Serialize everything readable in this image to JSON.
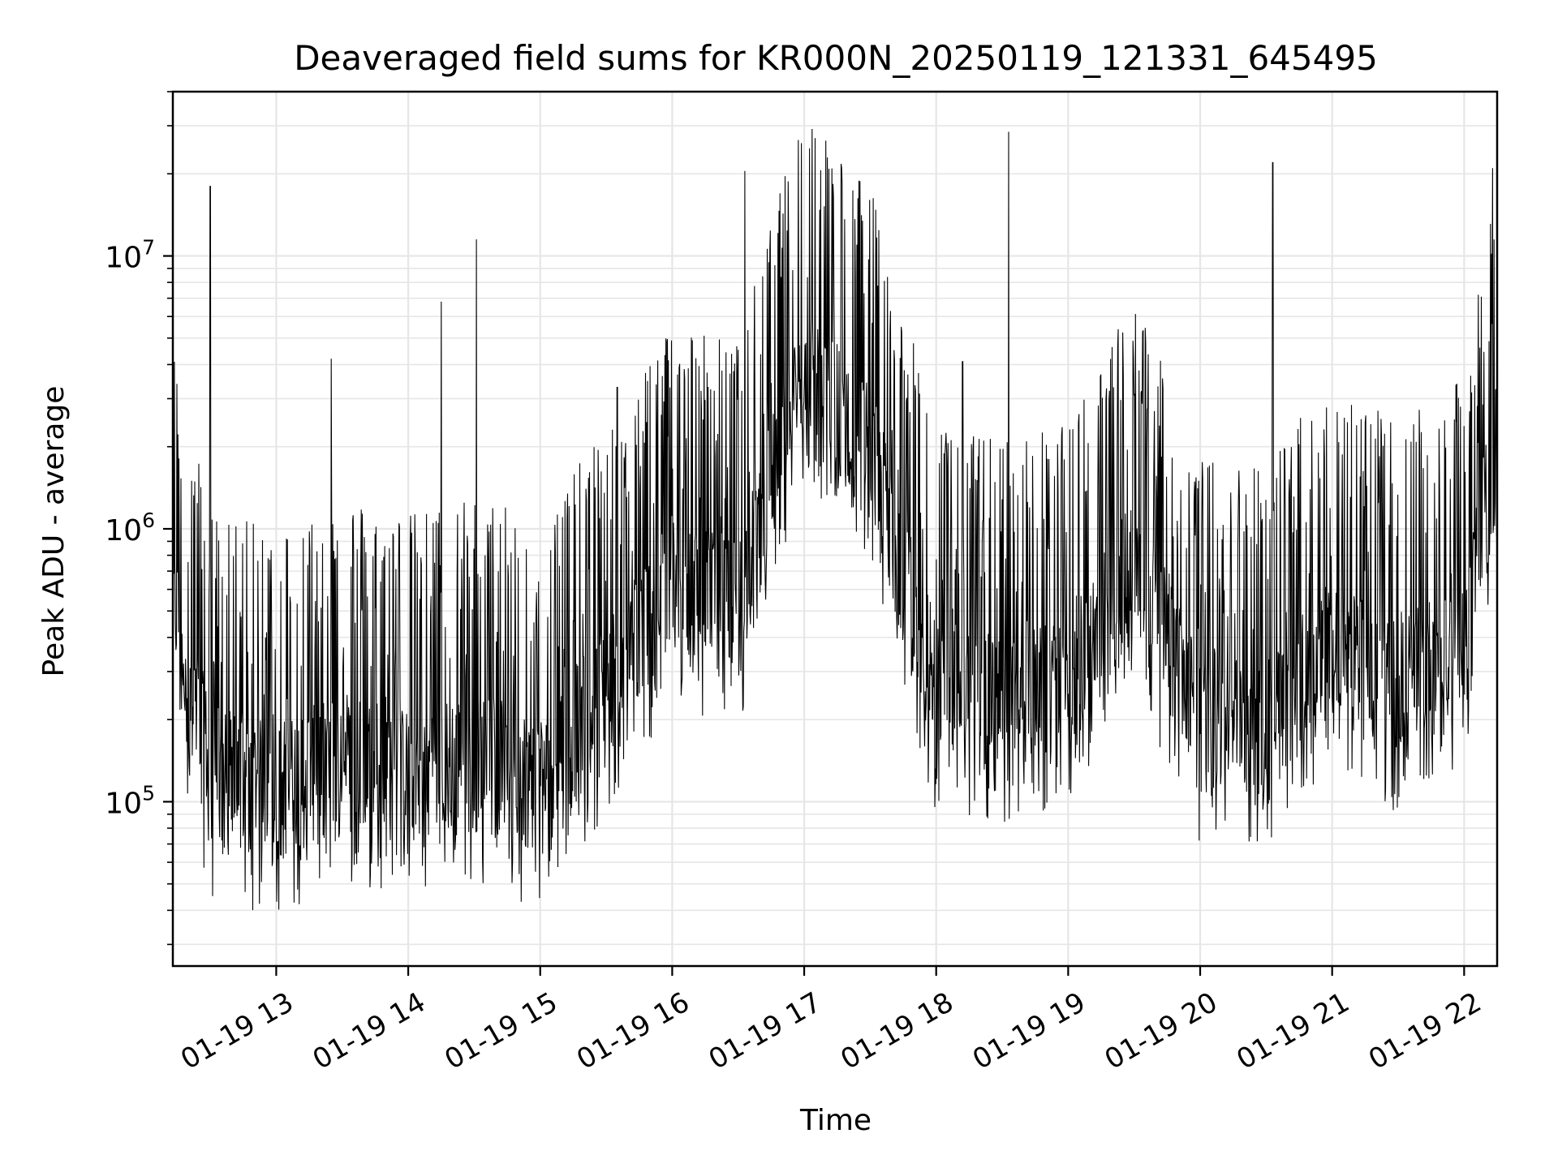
{
  "chart_data": {
    "type": "line",
    "title": "Deaveraged field sums for KR000N_20250119_121331_645495",
    "xlabel": "Time",
    "ylabel": "Peak ADU - average",
    "y_scale": "log",
    "ylim": [
      25000,
      40000000
    ],
    "xlim": [
      "2025-01-19 12:13",
      "2025-01-19 22:15"
    ],
    "grid": true,
    "line_color": "#000000",
    "grid_color": "#e6e6e6",
    "x_ticks": [
      {
        "value": "2025-01-19 13:00",
        "label": "01-19 13"
      },
      {
        "value": "2025-01-19 14:00",
        "label": "01-19 14"
      },
      {
        "value": "2025-01-19 15:00",
        "label": "01-19 15"
      },
      {
        "value": "2025-01-19 16:00",
        "label": "01-19 16"
      },
      {
        "value": "2025-01-19 17:00",
        "label": "01-19 17"
      },
      {
        "value": "2025-01-19 18:00",
        "label": "01-19 18"
      },
      {
        "value": "2025-01-19 19:00",
        "label": "01-19 19"
      },
      {
        "value": "2025-01-19 20:00",
        "label": "01-19 20"
      },
      {
        "value": "2025-01-19 21:00",
        "label": "01-19 21"
      },
      {
        "value": "2025-01-19 22:00",
        "label": "01-19 22"
      }
    ],
    "y_ticks": [
      {
        "value": 100000,
        "base": "10",
        "exp": "5"
      },
      {
        "value": 1000000,
        "base": "10",
        "exp": "6"
      },
      {
        "value": 10000000,
        "base": "10",
        "exp": "7"
      }
    ],
    "series": [
      {
        "x": [
          "2025-01-19 12:13",
          "2025-01-19 12:30",
          "2025-01-19 12:45",
          "2025-01-19 13:00",
          "2025-01-19 13:30",
          "2025-01-19 14:00",
          "2025-01-19 14:30",
          "2025-01-19 15:00",
          "2025-01-19 15:30",
          "2025-01-19 16:00",
          "2025-01-19 16:30",
          "2025-01-19 17:00",
          "2025-01-19 17:30",
          "2025-01-19 18:00",
          "2025-01-19 18:30",
          "2025-01-19 19:00",
          "2025-01-19 19:30",
          "2025-01-19 20:00",
          "2025-01-19 20:30",
          "2025-01-19 21:00",
          "2025-01-19 21:30",
          "2025-01-19 22:00",
          "2025-01-19 22:15"
        ],
        "y": [
          400000,
          100000,
          90000,
          85000,
          110000,
          95000,
          110000,
          90000,
          200000,
          500000,
          400000,
          3000000,
          1500000,
          200000,
          180000,
          200000,
          600000,
          150000,
          150000,
          300000,
          200000,
          300000,
          1600000
        ],
        "spikes": [
          {
            "x": "2025-01-19 12:30",
            "y": 18000000
          },
          {
            "x": "2025-01-19 13:25",
            "y": 4200000
          },
          {
            "x": "2025-01-19 14:15",
            "y": 6800000
          },
          {
            "x": "2025-01-19 14:31",
            "y": 11500000
          },
          {
            "x": "2025-01-19 15:35",
            "y": 3300000
          },
          {
            "x": "2025-01-19 16:33",
            "y": 20500000
          },
          {
            "x": "2025-01-19 17:24",
            "y": 11000000
          },
          {
            "x": "2025-01-19 18:12",
            "y": 4100000
          },
          {
            "x": "2025-01-19 18:33",
            "y": 28500000
          },
          {
            "x": "2025-01-19 19:30",
            "y": 3100000
          },
          {
            "x": "2025-01-19 20:33",
            "y": 22000000
          },
          {
            "x": "2025-01-19 22:13",
            "y": 21000000
          }
        ]
      }
    ]
  }
}
